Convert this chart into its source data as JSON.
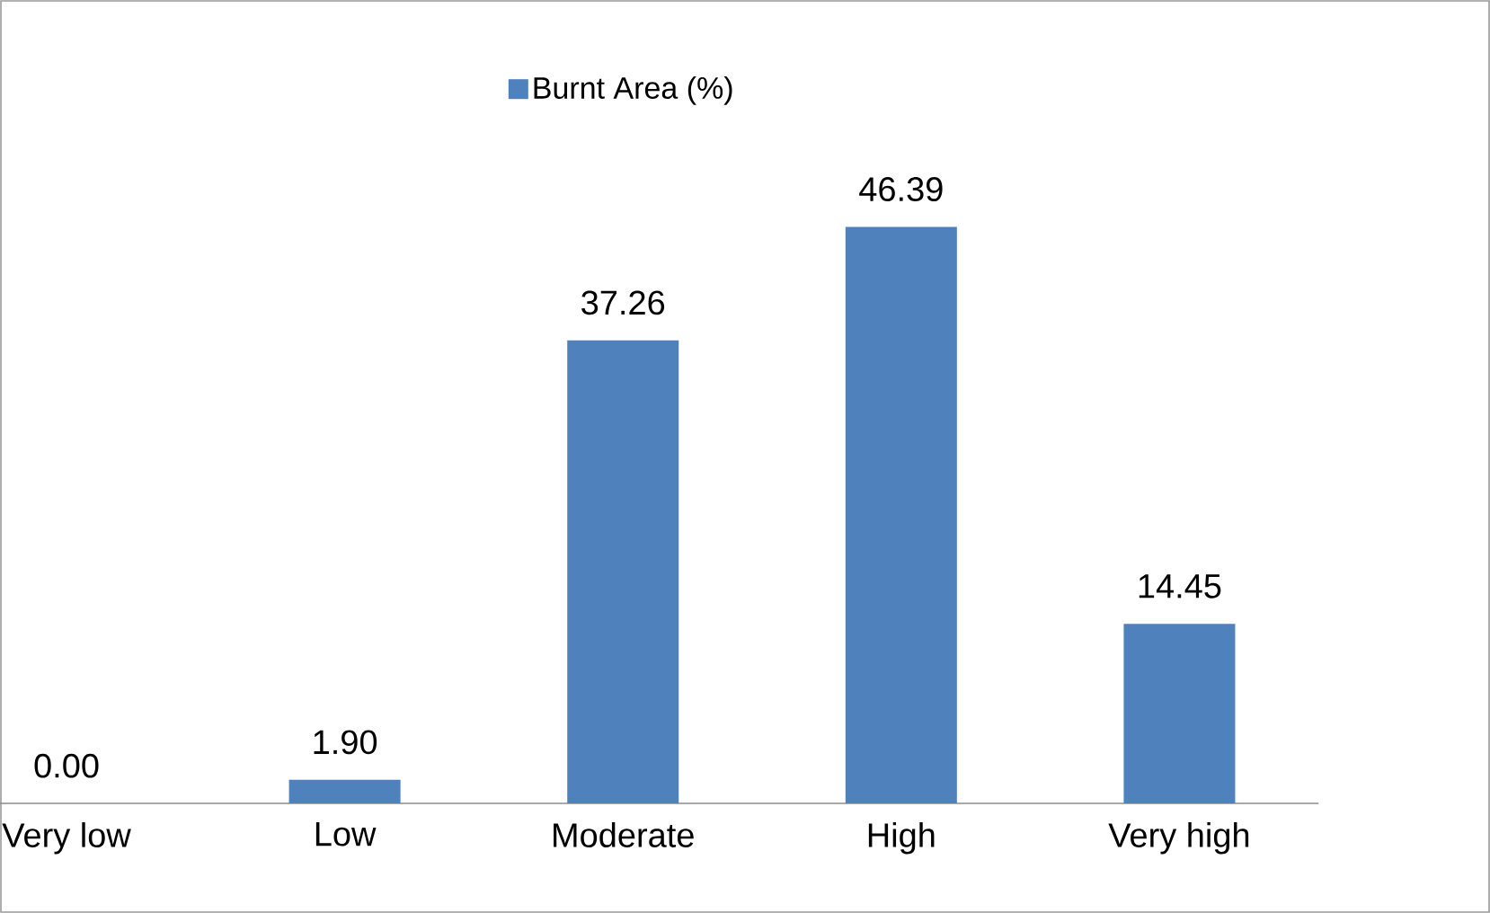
{
  "chart_data": {
    "type": "bar",
    "categories": [
      "Very low",
      "Low",
      "Moderate",
      "High",
      "Very high"
    ],
    "series": [
      {
        "name": "Burnt Area (%)",
        "color": "#4f81bd",
        "values": [
          0.0,
          1.9,
          37.26,
          46.39,
          14.45
        ],
        "value_labels": [
          "0.00",
          "1.90",
          "37.26",
          "46.39",
          "14.45"
        ]
      }
    ],
    "legend": "top",
    "tick_labels": "x"
  }
}
